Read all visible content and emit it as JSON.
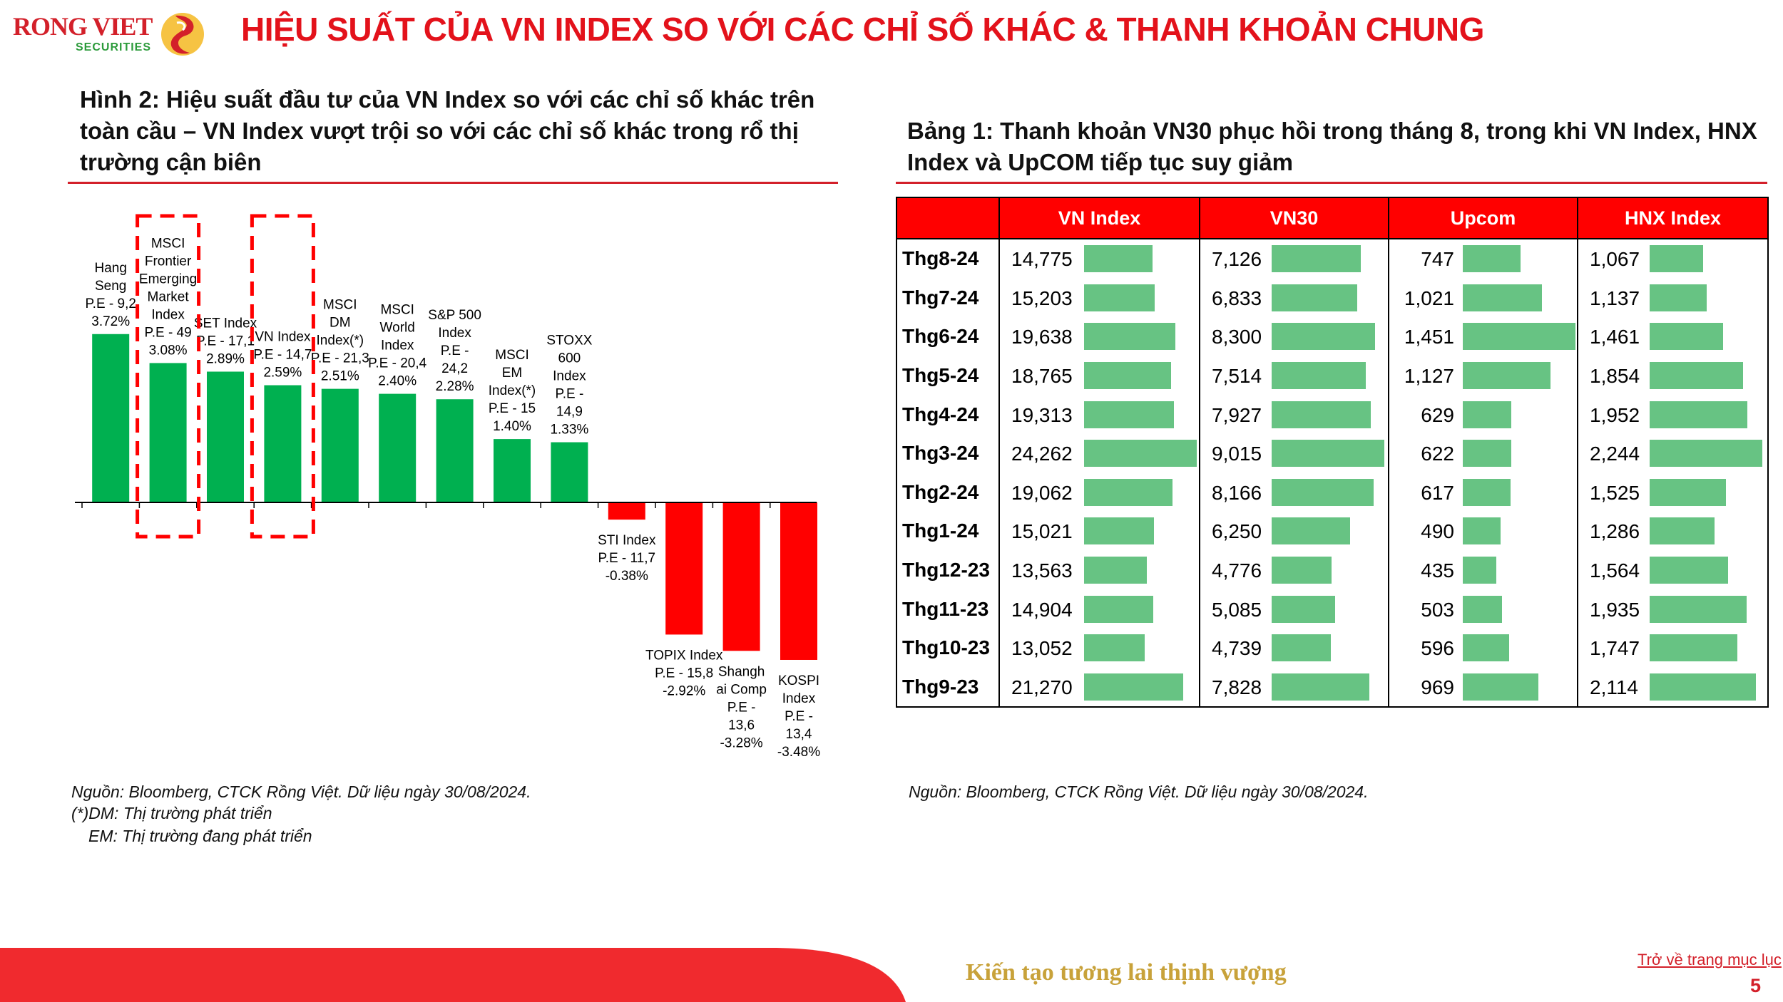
{
  "header": {
    "brand": "RONG VIET",
    "brand_sub": "SECURITIES",
    "title": "HIỆU SUẤT CỦA VN INDEX SO VỚI CÁC CHỈ SỐ KHÁC & THANH KHOẢN CHUNG"
  },
  "figure": {
    "title": "Hình 2: Hiệu suất đầu tư của VN Index so với các chỉ số khác trên toàn cầu – VN Index vượt trội so với các chỉ số khác trong rổ thị trường cận biên",
    "source": "Nguồn: Bloomberg, CTCK Rồng Việt. Dữ liệu ngày 30/08/2024.",
    "note_dm": "(*)DM: Thị trường phát triển",
    "note_em": "EM: Thị trường đang phát triển"
  },
  "table": {
    "title": "Bảng 1: Thanh khoản VN30 phục hồi trong tháng 8, trong khi VN Index, HNX Index và UpCOM tiếp tục suy giảm",
    "source": "Nguồn: Bloomberg, CTCK Rồng Việt. Dữ liệu ngày 30/08/2024.",
    "columns": [
      "",
      "VN Index",
      "VN30",
      "Upcom",
      "HNX Index"
    ],
    "rows": [
      {
        "period": "Thg8-24",
        "vnindex": "14,775",
        "vn30": "7,126",
        "upcom": "747",
        "hnx": "1,067"
      },
      {
        "period": "Thg7-24",
        "vnindex": "15,203",
        "vn30": "6,833",
        "upcom": "1,021",
        "hnx": "1,137"
      },
      {
        "period": "Thg6-24",
        "vnindex": "19,638",
        "vn30": "8,300",
        "upcom": "1,451",
        "hnx": "1,461"
      },
      {
        "period": "Thg5-24",
        "vnindex": "18,765",
        "vn30": "7,514",
        "upcom": "1,127",
        "hnx": "1,854"
      },
      {
        "period": "Thg4-24",
        "vnindex": "19,313",
        "vn30": "7,927",
        "upcom": "629",
        "hnx": "1,952"
      },
      {
        "period": "Thg3-24",
        "vnindex": "24,262",
        "vn30": "9,015",
        "upcom": "622",
        "hnx": "2,244"
      },
      {
        "period": "Thg2-24",
        "vnindex": "19,062",
        "vn30": "8,166",
        "upcom": "617",
        "hnx": "1,525"
      },
      {
        "period": "Thg1-24",
        "vnindex": "15,021",
        "vn30": "6,250",
        "upcom": "490",
        "hnx": "1,286"
      },
      {
        "period": "Thg12-23",
        "vnindex": "13,563",
        "vn30": "4,776",
        "upcom": "435",
        "hnx": "1,564"
      },
      {
        "period": "Thg11-23",
        "vnindex": "14,904",
        "vn30": "5,085",
        "upcom": "503",
        "hnx": "1,935"
      },
      {
        "period": "Thg10-23",
        "vnindex": "13,052",
        "vn30": "4,739",
        "upcom": "596",
        "hnx": "1,747"
      },
      {
        "period": "Thg9-23",
        "vnindex": "21,270",
        "vn30": "7,828",
        "upcom": "969",
        "hnx": "2,114"
      }
    ]
  },
  "chart_data": {
    "type": "bar",
    "categories": [
      [
        "Hang",
        "Seng",
        "P.E - 9,2"
      ],
      [
        "MSCI",
        "Frontier",
        "Emerging",
        "Market",
        "Index",
        "P.E - 49"
      ],
      [
        "SET Index",
        "P.E - 17,1"
      ],
      [
        "VN Index",
        "P.E - 14,7"
      ],
      [
        "MSCI",
        "DM",
        "Index(*)",
        "P.E - 21,3"
      ],
      [
        "MSCI",
        "World",
        "Index",
        "P.E - 20,4"
      ],
      [
        "S&P 500",
        "Index",
        "P.E -",
        "24,2"
      ],
      [
        "MSCI",
        "EM",
        "Index(*)",
        "P.E - 15"
      ],
      [
        "STOXX",
        "600",
        "Index",
        "P.E -",
        "14,9"
      ],
      [
        "STI Index",
        "P.E - 11,7"
      ],
      [
        "TOPIX Index",
        "P.E - 15,8"
      ],
      [
        "Shangh",
        "ai Comp",
        "P.E -",
        "13,6"
      ],
      [
        "KOSPI",
        "Index",
        "P.E -",
        "13,4"
      ]
    ],
    "values": [
      3.72,
      3.08,
      2.89,
      2.59,
      2.51,
      2.4,
      2.28,
      1.4,
      1.33,
      -0.38,
      -2.92,
      -3.28,
      -3.48
    ],
    "value_labels": [
      "3.72%",
      "3.08%",
      "2.89%",
      "2.59%",
      "2.51%",
      "2.40%",
      "2.28%",
      "1.40%",
      "1.33%",
      "-0.38%",
      "-2.92%",
      "-3.28%",
      "-3.48%"
    ],
    "highlighted": [
      1,
      3
    ],
    "colors": {
      "positive": "#00b050",
      "negative": "#ff0000",
      "highlight_box": "#ff0000"
    },
    "ylim": [
      -3.48,
      3.72
    ],
    "grid": false
  },
  "footer": {
    "tagline": "Kiến tạo tương lai thịnh vượng",
    "back_link": "Trở về trang mục lục",
    "page_number": "5"
  },
  "colors": {
    "brand_red": "#d3202a",
    "bar_green": "#67c383",
    "header_red": "#ff0000",
    "tagline_gold": "#c8a23a"
  }
}
